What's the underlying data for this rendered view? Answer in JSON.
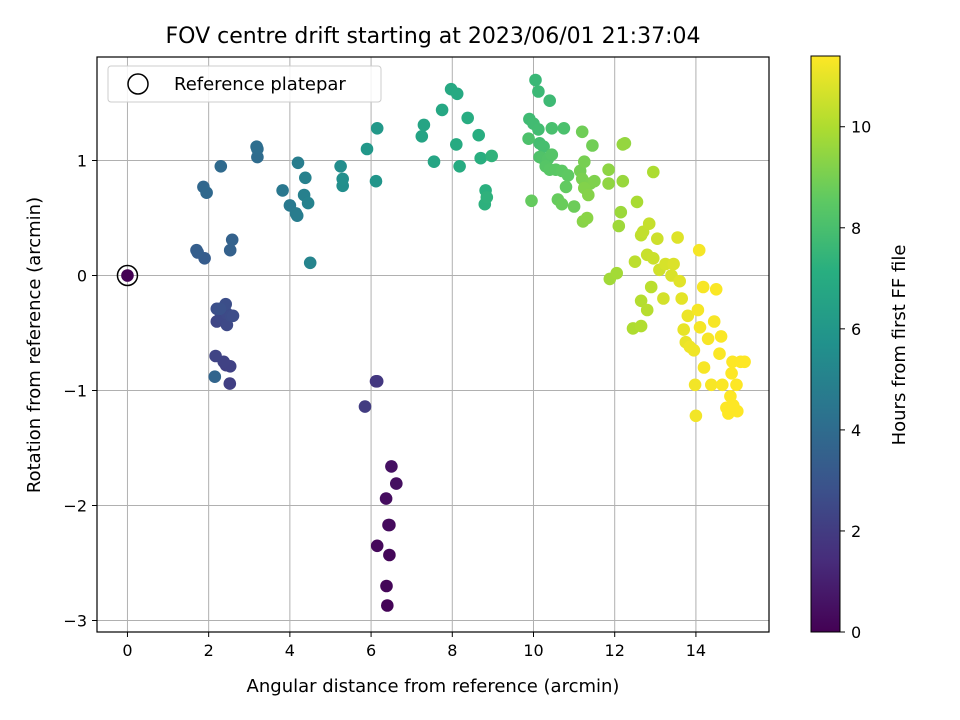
{
  "chart_data": {
    "type": "scatter",
    "title": "FOV centre drift starting at 2023/06/01 21:37:04",
    "xlabel": "Angular distance from reference (arcmin)",
    "ylabel": "Rotation from reference (arcmin)",
    "xlim": [
      -0.75,
      15.8
    ],
    "ylim": [
      -3.1,
      1.9
    ],
    "xticks": [
      0,
      2,
      4,
      6,
      8,
      10,
      12,
      14
    ],
    "yticks": [
      -3,
      -2,
      -1,
      0,
      1
    ],
    "grid": true,
    "legend": {
      "placement": "top-left",
      "entries": [
        "Reference platepar"
      ]
    },
    "reference": {
      "x": 0,
      "y": 0
    },
    "colorbar": {
      "label": "Hours from first FF file",
      "range": [
        0,
        11.4
      ],
      "ticks": [
        0,
        2,
        4,
        6,
        8,
        10
      ],
      "colormap": "viridis"
    },
    "series": [
      {
        "points": [
          [
            6.4,
            -2.87,
            0.1
          ],
          [
            6.38,
            -2.7,
            0.15
          ],
          [
            6.45,
            -2.43,
            0.2
          ],
          [
            6.15,
            -2.35,
            0.25
          ],
          [
            6.45,
            -2.17,
            0.3
          ],
          [
            6.43,
            -2.17,
            0.32
          ],
          [
            6.37,
            -1.94,
            0.4
          ],
          [
            6.62,
            -1.81,
            0.45
          ],
          [
            6.5,
            -1.66,
            0.5
          ],
          [
            6.12,
            -0.92,
            1.8
          ],
          [
            6.15,
            -0.92,
            1.85
          ],
          [
            5.85,
            -1.14,
            2.0
          ],
          [
            2.52,
            -0.94,
            2.1
          ],
          [
            2.43,
            -0.78,
            2.15
          ],
          [
            2.53,
            -0.79,
            2.2
          ],
          [
            2.37,
            -0.75,
            2.25
          ],
          [
            2.17,
            -0.7,
            2.3
          ],
          [
            2.15,
            -0.88,
            3.7
          ],
          [
            2.2,
            -0.4,
            2.4
          ],
          [
            2.3,
            -0.36,
            2.45
          ],
          [
            2.45,
            -0.43,
            2.5
          ],
          [
            2.45,
            -0.33,
            2.55
          ],
          [
            2.55,
            -0.35,
            2.6
          ],
          [
            2.6,
            -0.35,
            2.65
          ],
          [
            2.42,
            -0.25,
            2.7
          ],
          [
            2.2,
            -0.29,
            2.75
          ],
          [
            2.28,
            -0.29,
            2.8
          ],
          [
            1.9,
            0.15,
            3.3
          ],
          [
            1.73,
            0.2,
            3.35
          ],
          [
            1.7,
            0.22,
            3.4
          ],
          [
            2.53,
            0.22,
            3.5
          ],
          [
            2.58,
            0.31,
            3.55
          ],
          [
            1.87,
            0.77,
            3.8
          ],
          [
            1.95,
            0.72,
            3.85
          ],
          [
            2.3,
            0.95,
            3.9
          ],
          [
            3.2,
            1.03,
            4.0
          ],
          [
            3.2,
            1.1,
            4.05
          ],
          [
            3.18,
            1.12,
            4.1
          ],
          [
            3.82,
            0.74,
            4.5
          ],
          [
            4.0,
            0.61,
            4.6
          ],
          [
            4.15,
            0.54,
            4.7
          ],
          [
            4.18,
            0.52,
            4.75
          ],
          [
            4.2,
            0.98,
            4.8
          ],
          [
            4.35,
            0.7,
            4.9
          ],
          [
            4.38,
            0.85,
            4.95
          ],
          [
            4.45,
            0.63,
            5.0
          ],
          [
            4.5,
            0.11,
            5.1
          ],
          [
            5.25,
            0.95,
            5.5
          ],
          [
            5.3,
            0.78,
            5.55
          ],
          [
            5.3,
            0.84,
            5.6
          ],
          [
            6.12,
            0.82,
            5.9
          ],
          [
            5.9,
            1.1,
            6.0
          ],
          [
            6.15,
            1.28,
            6.05
          ],
          [
            7.25,
            1.21,
            6.6
          ],
          [
            7.3,
            1.31,
            6.65
          ],
          [
            7.55,
            0.99,
            6.7
          ],
          [
            7.75,
            1.44,
            6.8
          ],
          [
            7.97,
            1.62,
            6.85
          ],
          [
            8.12,
            1.58,
            6.9
          ],
          [
            8.1,
            1.14,
            6.95
          ],
          [
            8.18,
            0.95,
            7.0
          ],
          [
            8.38,
            1.37,
            7.05
          ],
          [
            8.65,
            1.22,
            7.1
          ],
          [
            8.7,
            1.02,
            7.15
          ],
          [
            8.82,
            0.74,
            7.2
          ],
          [
            8.8,
            0.62,
            7.25
          ],
          [
            8.85,
            0.68,
            7.3
          ],
          [
            8.97,
            1.04,
            7.35
          ],
          [
            10.05,
            1.7,
            7.6
          ],
          [
            10.12,
            1.6,
            7.65
          ],
          [
            10.4,
            1.52,
            7.7
          ],
          [
            9.9,
            1.36,
            7.75
          ],
          [
            10.0,
            1.32,
            7.8
          ],
          [
            10.12,
            1.27,
            7.85
          ],
          [
            10.15,
            1.15,
            7.9
          ],
          [
            10.25,
            1.12,
            7.95
          ],
          [
            10.45,
            1.28,
            8.0
          ],
          [
            10.75,
            1.28,
            8.05
          ],
          [
            9.88,
            1.19,
            8.1
          ],
          [
            10.15,
            1.03,
            8.15
          ],
          [
            10.22,
            1.02,
            8.2
          ],
          [
            10.35,
            1.01,
            8.25
          ],
          [
            10.45,
            1.05,
            8.3
          ],
          [
            10.3,
            0.95,
            8.35
          ],
          [
            10.4,
            0.92,
            8.4
          ],
          [
            10.55,
            0.92,
            8.45
          ],
          [
            10.7,
            0.91,
            8.5
          ],
          [
            10.85,
            0.87,
            8.55
          ],
          [
            10.8,
            0.77,
            8.6
          ],
          [
            9.95,
            0.65,
            8.65
          ],
          [
            10.6,
            0.66,
            8.7
          ],
          [
            10.7,
            0.62,
            8.75
          ],
          [
            11.0,
            0.6,
            8.8
          ],
          [
            11.2,
            1.25,
            8.85
          ],
          [
            11.45,
            1.13,
            8.9
          ],
          [
            11.15,
            0.91,
            8.95
          ],
          [
            11.25,
            0.99,
            9.0
          ],
          [
            11.2,
            0.84,
            9.05
          ],
          [
            11.4,
            0.8,
            9.1
          ],
          [
            11.5,
            0.82,
            9.15
          ],
          [
            11.25,
            0.76,
            9.2
          ],
          [
            11.35,
            0.7,
            9.25
          ],
          [
            11.22,
            0.47,
            9.3
          ],
          [
            11.32,
            0.5,
            9.35
          ],
          [
            11.85,
            0.92,
            9.4
          ],
          [
            11.85,
            0.8,
            9.45
          ],
          [
            12.25,
            1.15,
            9.5
          ],
          [
            12.2,
            1.14,
            9.55
          ],
          [
            12.2,
            0.82,
            9.6
          ],
          [
            12.15,
            0.55,
            9.65
          ],
          [
            12.1,
            0.43,
            9.7
          ],
          [
            11.88,
            -0.03,
            9.75
          ],
          [
            12.05,
            0.02,
            9.8
          ],
          [
            12.55,
            0.64,
            9.9
          ],
          [
            12.95,
            0.9,
            9.95
          ],
          [
            12.45,
            -0.46,
            10.0
          ],
          [
            12.65,
            -0.44,
            10.05
          ],
          [
            12.65,
            -0.22,
            10.1
          ],
          [
            12.8,
            -0.3,
            10.15
          ],
          [
            12.9,
            -0.1,
            10.2
          ],
          [
            12.5,
            0.12,
            10.25
          ],
          [
            12.65,
            0.35,
            10.3
          ],
          [
            12.7,
            0.38,
            10.35
          ],
          [
            12.85,
            0.45,
            10.4
          ],
          [
            12.8,
            0.18,
            10.45
          ],
          [
            12.95,
            0.15,
            10.5
          ],
          [
            13.05,
            0.32,
            10.55
          ],
          [
            13.1,
            0.05,
            10.6
          ],
          [
            13.2,
            -0.2,
            10.65
          ],
          [
            13.25,
            0.1,
            10.7
          ],
          [
            13.4,
            0.0,
            10.75
          ],
          [
            13.45,
            0.1,
            10.8
          ],
          [
            13.55,
            0.33,
            10.85
          ],
          [
            13.6,
            -0.05,
            10.9
          ],
          [
            13.65,
            -0.2,
            10.95
          ],
          [
            13.7,
            -0.47,
            11.0
          ],
          [
            13.75,
            -0.58,
            11.05
          ],
          [
            13.8,
            -0.35,
            11.1
          ],
          [
            13.85,
            -0.62,
            11.15
          ],
          [
            13.95,
            -0.65,
            11.15
          ],
          [
            13.98,
            -0.95,
            11.2
          ],
          [
            14.0,
            -1.22,
            11.2
          ],
          [
            14.05,
            -0.3,
            11.25
          ],
          [
            14.08,
            0.22,
            11.25
          ],
          [
            14.1,
            -0.45,
            11.25
          ],
          [
            14.18,
            -0.1,
            11.3
          ],
          [
            14.2,
            -0.8,
            11.3
          ],
          [
            14.3,
            -0.55,
            11.3
          ],
          [
            14.38,
            -0.95,
            11.3
          ],
          [
            14.45,
            -0.4,
            11.3
          ],
          [
            14.5,
            -0.12,
            11.35
          ],
          [
            14.58,
            -0.68,
            11.35
          ],
          [
            14.62,
            -0.53,
            11.35
          ],
          [
            14.65,
            -0.95,
            11.35
          ],
          [
            14.75,
            -1.15,
            11.4
          ],
          [
            14.8,
            -1.2,
            11.4
          ],
          [
            14.85,
            -1.05,
            11.4
          ],
          [
            14.9,
            -0.75,
            11.4
          ],
          [
            15.0,
            -0.95,
            11.4
          ],
          [
            15.02,
            -1.18,
            11.4
          ],
          [
            15.1,
            -0.75,
            11.4
          ],
          [
            15.2,
            -0.75,
            11.4
          ],
          [
            14.92,
            -1.13,
            11.4
          ],
          [
            14.88,
            -0.85,
            11.4
          ]
        ]
      }
    ]
  }
}
